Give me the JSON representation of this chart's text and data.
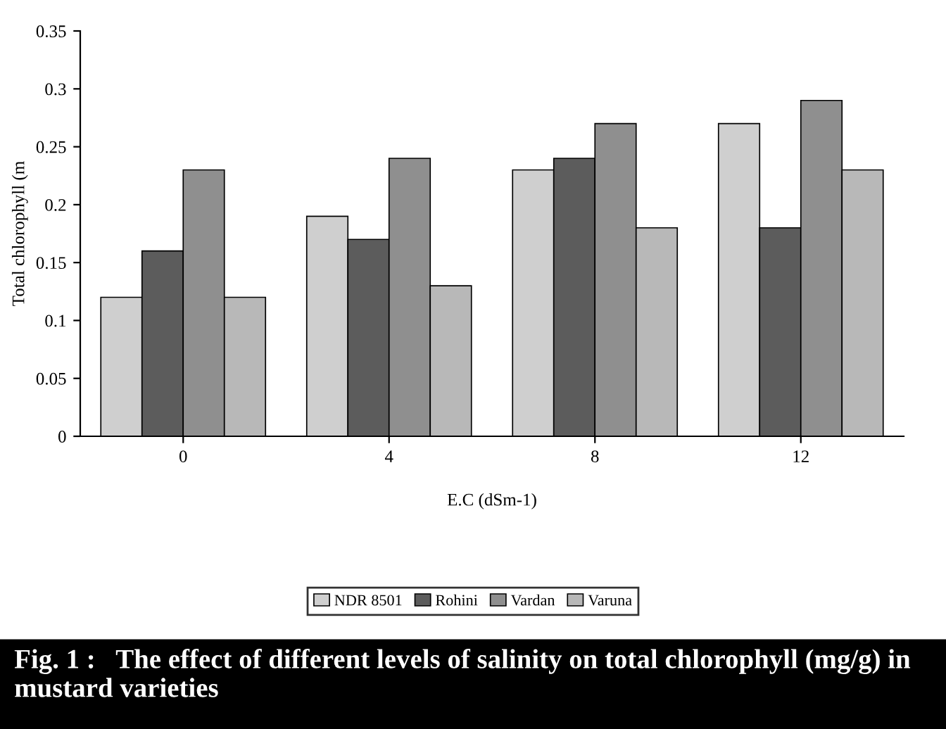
{
  "chart_data": {
    "type": "bar",
    "categories": [
      "0",
      "4",
      "8",
      "12"
    ],
    "series": [
      {
        "name": "NDR 8501",
        "color": "#cfcfcf",
        "values": [
          0.12,
          0.19,
          0.23,
          0.27
        ]
      },
      {
        "name": "Rohini",
        "color": "#5c5c5c",
        "values": [
          0.16,
          0.17,
          0.24,
          0.18
        ]
      },
      {
        "name": "Vardan",
        "color": "#8f8f8f",
        "values": [
          0.23,
          0.24,
          0.27,
          0.29
        ]
      },
      {
        "name": "Varuna",
        "color": "#b8b8b8",
        "values": [
          0.12,
          0.13,
          0.18,
          0.23
        ]
      }
    ],
    "ylim": [
      0,
      0.35
    ],
    "yticks": [
      0,
      0.05,
      0.1,
      0.15,
      0.2,
      0.25,
      0.3,
      0.35
    ],
    "xlabel": "E.C (dSm-1)",
    "ylabel": "Total chlorophyll (m",
    "legend": "bottom",
    "grid": false,
    "annotations": [
      "Fig. 1 :   The effect of different levels of salinity on total chlorophyll (mg/g) in mustard varieties"
    ]
  }
}
